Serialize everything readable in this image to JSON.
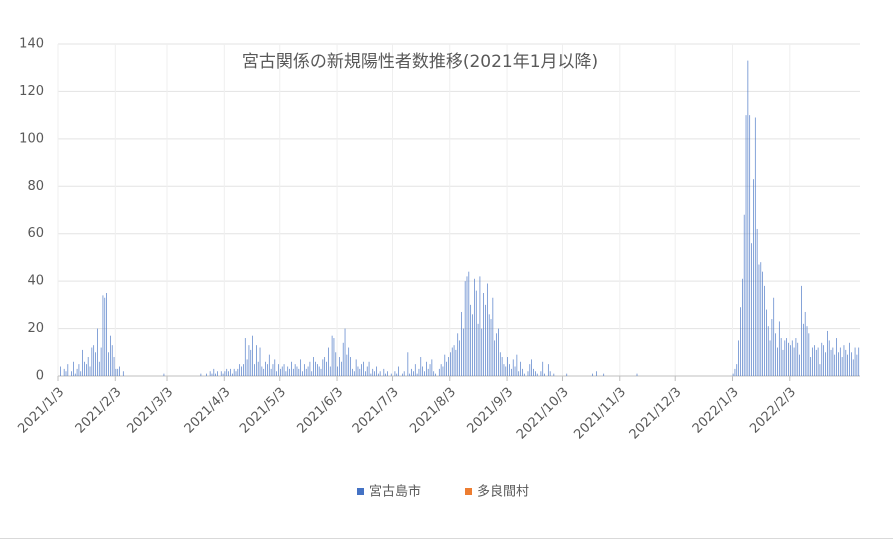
{
  "chart_data": {
    "type": "bar",
    "title": "宮古関係の新規陽性者数推移(2021年1月以降)",
    "categories": [
      "2021/1/3",
      null,
      null,
      null,
      null,
      null,
      null,
      null,
      null,
      null,
      null,
      null,
      null,
      null,
      null,
      null,
      null,
      null,
      null,
      null,
      null,
      null,
      null,
      null,
      null,
      null,
      null,
      null,
      null,
      null,
      null,
      "2021/2/3",
      null,
      null,
      null,
      null,
      null,
      null,
      null,
      null,
      null,
      null,
      null,
      null,
      null,
      null,
      null,
      null,
      null,
      null,
      null,
      null,
      null,
      null,
      null,
      null,
      null,
      null,
      null,
      "2021/3/3",
      null,
      null,
      null,
      null,
      null,
      null,
      null,
      null,
      null,
      null,
      null,
      null,
      null,
      null,
      null,
      null,
      null,
      null,
      null,
      null,
      null,
      null,
      null,
      null,
      null,
      null,
      null,
      null,
      null,
      null,
      "2021/4/3",
      null,
      null,
      null,
      null,
      null,
      null,
      null,
      null,
      null,
      null,
      null,
      null,
      null,
      null,
      null,
      null,
      null,
      null,
      null,
      null,
      null,
      null,
      null,
      null,
      null,
      null,
      null,
      null,
      null,
      "2021/5/3",
      null,
      null,
      null,
      null,
      null,
      null,
      null,
      null,
      null,
      null,
      null,
      null,
      null,
      null,
      null,
      null,
      null,
      null,
      null,
      null,
      null,
      null,
      null,
      null,
      null,
      null,
      null,
      null,
      null,
      null,
      "2021/6/3",
      null,
      null,
      null,
      null,
      null,
      null,
      null,
      null,
      null,
      null,
      null,
      null,
      null,
      null,
      null,
      null,
      null,
      null,
      null,
      null,
      null,
      null,
      null,
      null,
      null,
      null,
      null,
      null,
      null,
      "2021/7/3",
      null,
      null,
      null,
      null,
      null,
      null,
      null,
      null,
      null,
      null,
      null,
      null,
      null,
      null,
      null,
      null,
      null,
      null,
      null,
      null,
      null,
      null,
      null,
      null,
      null,
      null,
      null,
      null,
      null,
      null,
      "2021/8/3",
      null,
      null,
      null,
      null,
      null,
      null,
      null,
      null,
      null,
      null,
      null,
      null,
      null,
      null,
      null,
      null,
      null,
      null,
      null,
      null,
      null,
      null,
      null,
      null,
      null,
      null,
      null,
      null,
      null,
      null,
      "2021/9/3",
      null,
      null,
      null,
      null,
      null,
      null,
      null,
      null,
      null,
      null,
      null,
      null,
      null,
      null,
      null,
      null,
      null,
      null,
      null,
      null,
      null,
      null,
      null,
      null,
      null,
      null,
      null,
      null,
      null,
      "2021/10/3",
      null,
      null,
      null,
      null,
      null,
      null,
      null,
      null,
      null,
      null,
      null,
      null,
      null,
      null,
      null,
      null,
      null,
      null,
      null,
      null,
      null,
      null,
      null,
      null,
      null,
      null,
      null,
      null,
      null,
      null,
      "2021/11/3",
      null,
      null,
      null,
      null,
      null,
      null,
      null,
      null,
      null,
      null,
      null,
      null,
      null,
      null,
      null,
      null,
      null,
      null,
      null,
      null,
      null,
      null,
      null,
      null,
      null,
      null,
      null,
      null,
      null,
      "2021/12/3",
      null,
      null,
      null,
      null,
      null,
      null,
      null,
      null,
      null,
      null,
      null,
      null,
      null,
      null,
      null,
      null,
      null,
      null,
      null,
      null,
      null,
      null,
      null,
      null,
      null,
      null,
      null,
      null,
      null,
      null,
      "2022/1/3",
      null,
      null,
      null,
      null,
      null,
      null,
      null,
      null,
      null,
      null,
      null,
      null,
      null,
      null,
      null,
      null,
      null,
      null,
      null,
      null,
      null,
      null,
      null,
      null,
      null,
      null,
      null,
      null,
      null,
      null,
      "2022/2/3",
      null,
      null,
      null,
      null,
      null,
      null,
      null,
      null,
      null,
      null,
      null,
      null,
      null,
      null,
      null,
      null,
      null,
      null,
      null,
      null,
      null,
      null,
      null,
      null,
      null,
      null,
      null,
      null,
      null,
      null,
      null,
      null,
      null,
      null,
      null,
      null,
      null
    ],
    "series": [
      {
        "name": "宮古島市",
        "color": "#4472c4",
        "values": [
          0,
          4,
          0,
          3,
          2,
          5,
          0,
          2,
          6,
          1,
          3,
          5,
          2,
          11,
          6,
          5,
          8,
          4,
          12,
          13,
          10,
          20,
          6,
          12,
          34,
          33,
          35,
          10,
          17,
          13,
          8,
          3,
          3,
          4,
          0,
          2,
          0,
          0,
          0,
          0,
          0,
          0,
          0,
          0,
          0,
          0,
          0,
          0,
          0,
          0,
          0,
          0,
          0,
          0,
          0,
          0,
          0,
          1,
          0,
          0,
          0,
          0,
          0,
          0,
          0,
          0,
          0,
          0,
          0,
          0,
          0,
          0,
          0,
          0,
          0,
          0,
          0,
          1,
          0,
          0,
          1,
          0,
          2,
          1,
          3,
          1,
          2,
          0,
          2,
          1,
          2,
          3,
          2,
          3,
          1,
          3,
          2,
          3,
          5,
          4,
          5,
          16,
          7,
          13,
          11,
          17,
          5,
          13,
          6,
          12,
          4,
          3,
          6,
          5,
          9,
          3,
          5,
          7,
          2,
          5,
          3,
          4,
          5,
          2,
          4,
          3,
          6,
          3,
          5,
          4,
          3,
          7,
          2,
          5,
          3,
          4,
          6,
          2,
          8,
          6,
          5,
          4,
          3,
          7,
          8,
          6,
          12,
          4,
          17,
          16,
          10,
          4,
          8,
          6,
          14,
          20,
          9,
          12,
          8,
          3,
          2,
          7,
          4,
          3,
          5,
          6,
          2,
          4,
          6,
          1,
          3,
          2,
          4,
          1,
          2,
          0,
          3,
          1,
          2,
          0,
          1,
          0,
          2,
          1,
          4,
          0,
          1,
          2,
          0,
          10,
          1,
          3,
          2,
          5,
          1,
          3,
          8,
          4,
          2,
          6,
          3,
          5,
          7,
          2,
          1,
          0,
          3,
          5,
          4,
          9,
          6,
          8,
          10,
          12,
          13,
          11,
          18,
          15,
          27,
          20,
          40,
          42,
          44,
          30,
          26,
          41,
          36,
          22,
          42,
          20,
          35,
          30,
          39,
          26,
          24,
          33,
          15,
          18,
          20,
          10,
          8,
          5,
          4,
          8,
          5,
          3,
          7,
          4,
          9,
          2,
          6,
          3,
          1,
          0,
          2,
          5,
          7,
          3,
          2,
          1,
          0,
          2,
          6,
          1,
          0,
          5,
          2,
          0,
          1,
          0,
          0,
          0,
          0,
          0,
          0,
          1,
          0,
          0,
          0,
          0,
          0,
          0,
          0,
          0,
          0,
          0,
          0,
          0,
          0,
          1,
          0,
          2,
          0,
          0,
          0,
          1,
          0,
          0,
          0,
          0,
          0,
          0,
          0,
          0,
          0,
          0,
          0,
          0,
          0,
          0,
          0,
          0,
          0,
          1,
          0,
          0,
          0,
          0,
          0,
          0,
          0,
          0,
          0,
          0,
          0,
          0,
          0,
          0,
          0,
          0,
          0,
          0,
          0,
          0,
          0,
          0,
          0,
          0,
          0,
          0,
          0,
          0,
          0,
          0,
          0,
          0,
          0,
          0,
          0,
          0,
          0,
          0,
          0,
          0,
          0,
          0,
          0,
          0,
          0,
          0,
          0,
          0,
          0,
          0,
          0,
          1,
          3,
          5,
          15,
          29,
          41,
          68,
          110,
          133,
          110,
          56,
          83,
          109,
          62,
          47,
          48,
          44,
          38,
          28,
          21,
          15,
          24,
          33,
          18,
          12,
          23,
          16,
          11,
          15,
          16,
          14,
          13,
          15,
          12,
          16,
          14,
          9,
          38,
          22,
          27,
          21,
          18,
          8,
          12,
          13,
          11,
          12,
          5,
          14,
          13,
          10,
          19,
          15,
          11,
          12,
          9,
          16,
          10,
          12,
          8,
          13,
          11,
          9,
          14,
          10,
          7,
          12,
          9,
          12
        ]
      },
      {
        "name": "多良間村",
        "color": "#ed7d31",
        "values": [
          0,
          0,
          0,
          0,
          0,
          0,
          0,
          0,
          0,
          0,
          0,
          0,
          0,
          0,
          0,
          0,
          0,
          0,
          0,
          0,
          0,
          0,
          0,
          0,
          0,
          0,
          0,
          0,
          0,
          0,
          0,
          0,
          0,
          0,
          0,
          0,
          0,
          0,
          0,
          0,
          0,
          0,
          0,
          0,
          0,
          0,
          0,
          0,
          0,
          0,
          0,
          0,
          0,
          0,
          0,
          0,
          0,
          0,
          0,
          0,
          0,
          0,
          0,
          0,
          0,
          0,
          0,
          0,
          0,
          0,
          0,
          0,
          0,
          0,
          0,
          0,
          0,
          0,
          0,
          0,
          0,
          0,
          0,
          0,
          0,
          0,
          0,
          0,
          0,
          0,
          0,
          0,
          0,
          0,
          0,
          0,
          0,
          0,
          0,
          0,
          0,
          0,
          0,
          0,
          0,
          0,
          0,
          0,
          0,
          0,
          0,
          0,
          0,
          0,
          0,
          0,
          0,
          0,
          0,
          0,
          0,
          0,
          0,
          0,
          0,
          0,
          0,
          0,
          0,
          0,
          0,
          0,
          0,
          0,
          0,
          0,
          0,
          0,
          0,
          0,
          0,
          0,
          0,
          0,
          0,
          0,
          0,
          0,
          0,
          0,
          0,
          0,
          0,
          0,
          0,
          0,
          0,
          0,
          0,
          0,
          0,
          0,
          0,
          0,
          0,
          0,
          0,
          0,
          0,
          0,
          0,
          0,
          0,
          0,
          0,
          0,
          0,
          0,
          0,
          0,
          0,
          0,
          0,
          0,
          0,
          0,
          0,
          0,
          0,
          0,
          0,
          0,
          0,
          0,
          0,
          0,
          0,
          0,
          0,
          0,
          0,
          0,
          0,
          0,
          0,
          0,
          0,
          0,
          0,
          0,
          0,
          0,
          0,
          0,
          0,
          0,
          0,
          0,
          0,
          0,
          0,
          0,
          0,
          0,
          0,
          0,
          0,
          0,
          0,
          0,
          0,
          0,
          0,
          0,
          0,
          0,
          0,
          0,
          0,
          0,
          0,
          0,
          0,
          0,
          0,
          0,
          0,
          0,
          0,
          0,
          0,
          0,
          0,
          0,
          0,
          0,
          0,
          0,
          0,
          0,
          0,
          0,
          0,
          0,
          0,
          0,
          0,
          0,
          0,
          0,
          0,
          0,
          0,
          0,
          0,
          0,
          0,
          0,
          0,
          0,
          0,
          0,
          0,
          0,
          0,
          0,
          0,
          0,
          0,
          0,
          0,
          0,
          0,
          0,
          0,
          0,
          0,
          0,
          0,
          0,
          0,
          0,
          0,
          0,
          0,
          0,
          0,
          0,
          0,
          0,
          0,
          0,
          0,
          0,
          0,
          0,
          0,
          0,
          0,
          0,
          0,
          0,
          0,
          0,
          0,
          0,
          0,
          0,
          0,
          0,
          0,
          0,
          0,
          0,
          0,
          0,
          0,
          0,
          0,
          0,
          0,
          0,
          0,
          0,
          0,
          0,
          0,
          0,
          0,
          0,
          0,
          0,
          0,
          0,
          0,
          0,
          0,
          0,
          0,
          0,
          0,
          0,
          0,
          0,
          0,
          0,
          0,
          0,
          0,
          0,
          0,
          0,
          0,
          0,
          0,
          0,
          0,
          0,
          0,
          0,
          0,
          0,
          0,
          0,
          0,
          0,
          0,
          0,
          0,
          0,
          0,
          0,
          0,
          0,
          0,
          0,
          0,
          0,
          0,
          0,
          0,
          0,
          0,
          0,
          0,
          0,
          0,
          0,
          0,
          0,
          0,
          0,
          0,
          0,
          0,
          0,
          0,
          0,
          0,
          0,
          0,
          0,
          0,
          0,
          0,
          0,
          0,
          0,
          0,
          0,
          0,
          0,
          0,
          0
        ]
      }
    ],
    "ylim": [
      0,
      140
    ],
    "yticks": [
      0,
      20,
      40,
      60,
      80,
      100,
      120,
      140
    ],
    "grid": true,
    "legend": "bottom"
  }
}
